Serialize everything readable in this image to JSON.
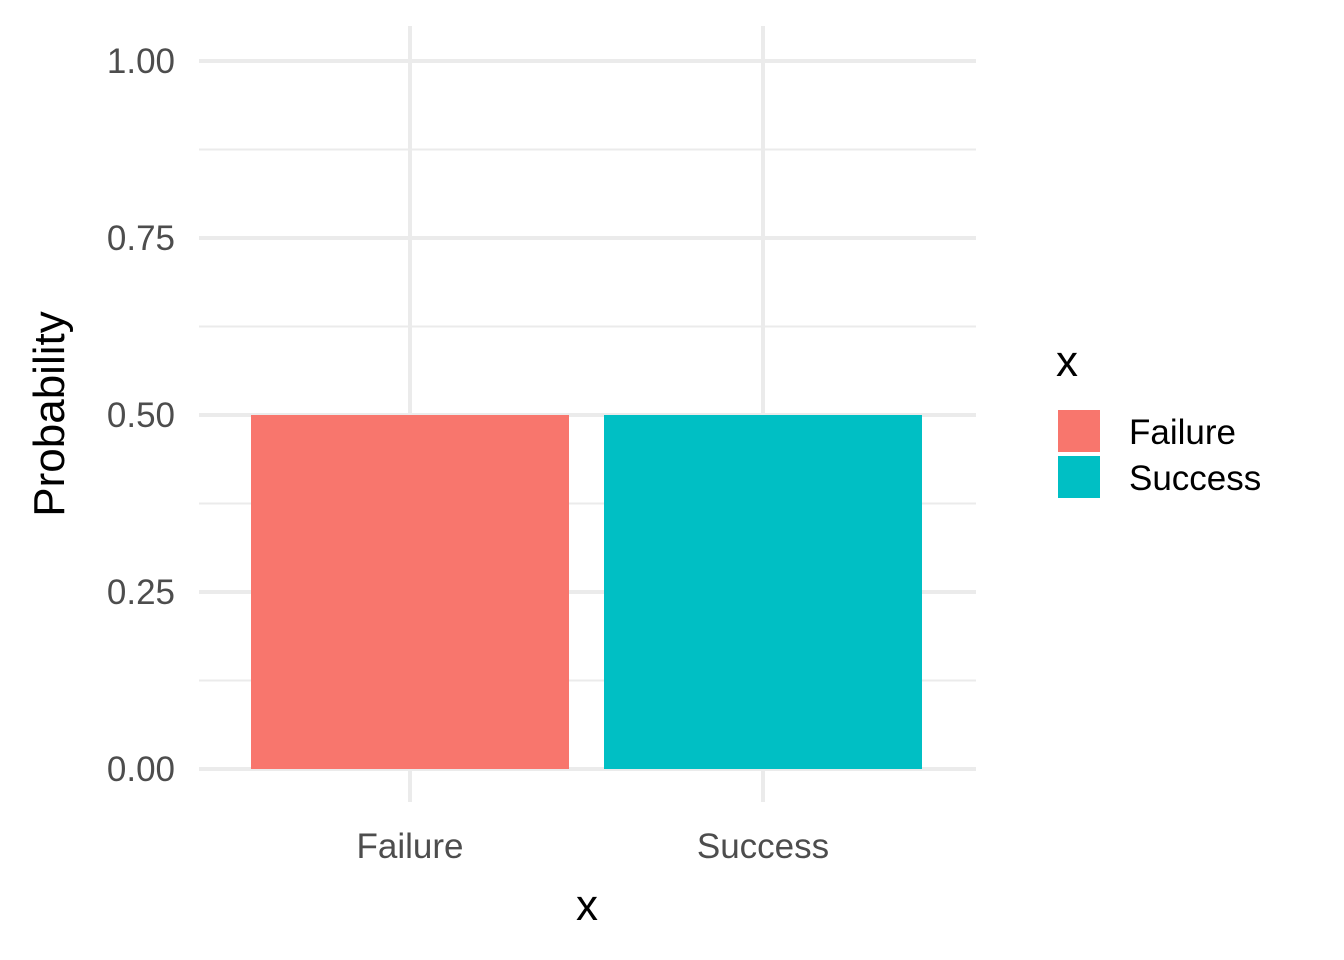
{
  "chart_data": {
    "type": "bar",
    "categories": [
      "Failure",
      "Success"
    ],
    "values": [
      0.5,
      0.5
    ],
    "colors": [
      "#F8766D",
      "#00BFC4"
    ],
    "xlabel": "x",
    "ylabel": "Probability",
    "ylim": [
      0,
      1.0
    ],
    "yticks": [
      0.0,
      0.25,
      0.5,
      0.75,
      1.0
    ],
    "ytick_labels": [
      "0.00",
      "0.25",
      "0.50",
      "0.75",
      "1.00"
    ],
    "grid": true,
    "legend": {
      "title": "x",
      "placement": "right",
      "entries": [
        "Failure",
        "Success"
      ]
    }
  }
}
